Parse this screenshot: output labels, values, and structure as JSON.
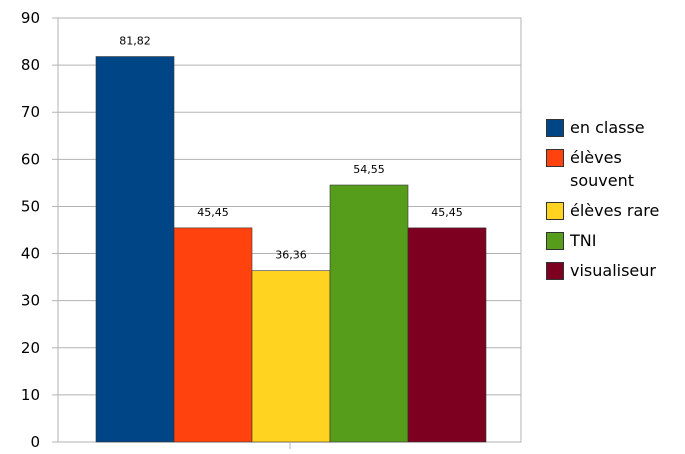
{
  "chart_data": {
    "type": "bar",
    "categories": [
      ""
    ],
    "series": [
      {
        "name": "en classe",
        "values": [
          81.82
        ],
        "label": "81,82",
        "color": "#004586"
      },
      {
        "name": "élèves souvent",
        "values": [
          45.45
        ],
        "label": "45,45",
        "color": "#ff420e"
      },
      {
        "name": "élèves rare",
        "values": [
          36.36
        ],
        "label": "36,36",
        "color": "#ffd320"
      },
      {
        "name": "TNI",
        "values": [
          54.55
        ],
        "label": "54,55",
        "color": "#579d1c"
      },
      {
        "name": "visualiseur",
        "values": [
          45.45
        ],
        "label": "45,45",
        "color": "#7e0021"
      }
    ],
    "title": "",
    "xlabel": "",
    "ylabel": "",
    "ylim": [
      0,
      90
    ],
    "yticks": [
      "0",
      "10",
      "20",
      "30",
      "40",
      "50",
      "60",
      "70",
      "80",
      "90"
    ],
    "grid": true,
    "legend": "right"
  }
}
